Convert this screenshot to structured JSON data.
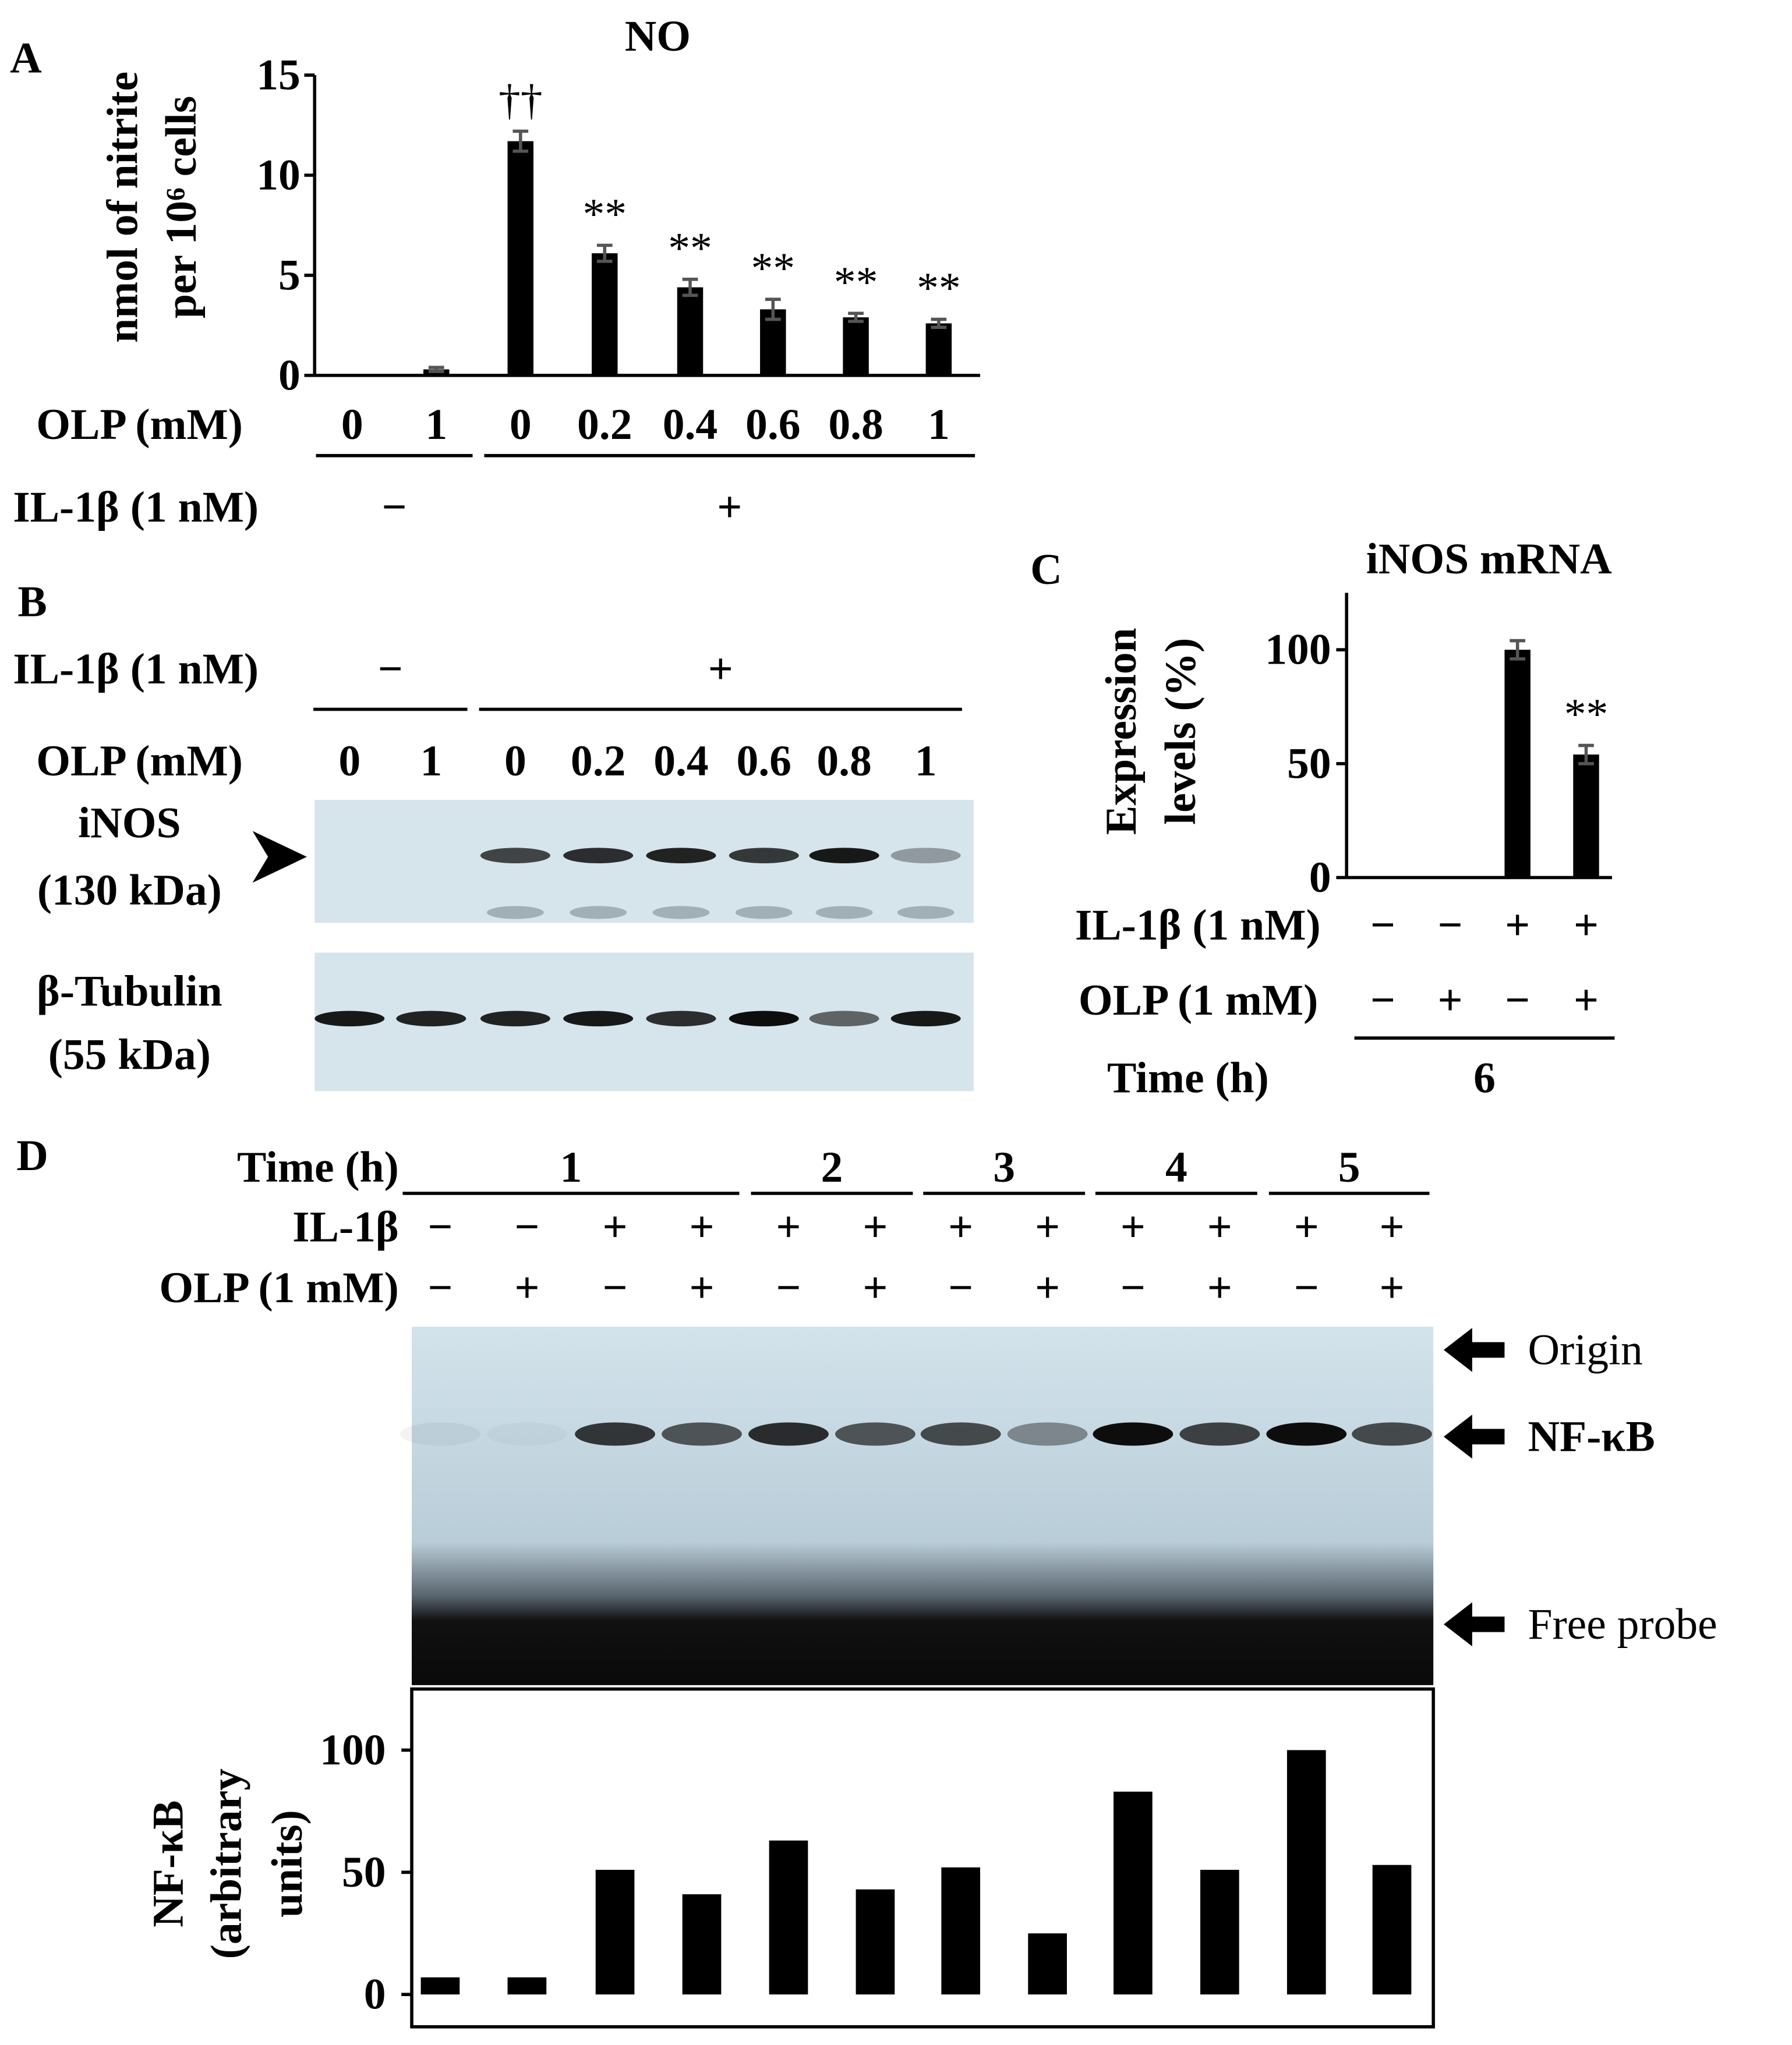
{
  "chart_data": [
    {
      "type": "bar",
      "panel": "A",
      "title": "NO",
      "y_label": [
        "nmol of nitrite",
        "per 10⁶ cells"
      ],
      "category_label": "OLP (mM)",
      "categories": [
        "0",
        "1",
        "0",
        "0.2",
        "0.4",
        "0.6",
        "0.8",
        "1"
      ],
      "values": [
        0,
        0.3,
        11.7,
        6.1,
        4.4,
        3.3,
        2.9,
        2.6
      ],
      "errors": [
        0,
        0.1,
        0.5,
        0.4,
        0.4,
        0.5,
        0.2,
        0.2
      ],
      "annotations": [
        null,
        null,
        "††",
        "**",
        "**",
        "**",
        "**",
        "**"
      ],
      "condition_rows": [
        {
          "label": "IL-1β (1 nM)",
          "groups": [
            {
              "text": "−",
              "from": 0,
              "to": 1
            },
            {
              "text": "+",
              "from": 2,
              "to": 7
            }
          ]
        }
      ],
      "ylim": [
        0,
        15
      ],
      "yticks": [
        0,
        5,
        10,
        15
      ],
      "color": "#000000"
    },
    {
      "type": "bar",
      "panel": "C",
      "title": "iNOS mRNA",
      "y_label": [
        "Expression",
        "levels (%)"
      ],
      "values": [
        0,
        0,
        100,
        54
      ],
      "errors": [
        0,
        0,
        4,
        4
      ],
      "annotations": [
        null,
        null,
        null,
        "**"
      ],
      "condition_rows": [
        {
          "label": "IL-1β (1 nM)",
          "signs": [
            "−",
            "−",
            "+",
            "+"
          ]
        },
        {
          "label": "OLP (1 mM)",
          "signs": [
            "−",
            "+",
            "−",
            "+"
          ]
        },
        {
          "label": "Time (h)",
          "groups": [
            {
              "text": "6",
              "from": 0,
              "to": 3
            }
          ]
        }
      ],
      "ylim": [
        0,
        125
      ],
      "yticks": [
        0,
        50,
        100
      ],
      "color": "#000000"
    },
    {
      "type": "bar",
      "y_label": [
        "NF-κB",
        "(arbitrary",
        "units)"
      ],
      "values": [
        7,
        7,
        51,
        41,
        63,
        43,
        52,
        25,
        83,
        51,
        100,
        53
      ],
      "ylim": [
        0,
        125
      ],
      "yticks": [
        0,
        50,
        100
      ],
      "color": "#000000"
    }
  ],
  "blots": [
    {
      "panel": "B",
      "condition_rows": [
        {
          "label": "IL-1β (1 nM)",
          "groups": [
            {
              "text": "−",
              "from": 0,
              "to": 1
            },
            {
              "text": "+",
              "from": 2,
              "to": 7
            }
          ]
        },
        {
          "label": "OLP (mM)",
          "signs": [
            "0",
            "1",
            "0",
            "0.2",
            "0.4",
            "0.6",
            "0.8",
            "1"
          ]
        }
      ],
      "bands": [
        {
          "label": [
            "iNOS",
            "(130 kDa)"
          ]
        },
        {
          "label": [
            "β-Tubulin",
            "(55 kDa)"
          ]
        }
      ]
    },
    {
      "panel": "D",
      "condition_rows": [
        {
          "label": "Time (h)",
          "groups": [
            {
              "text": "1",
              "from": 0,
              "to": 3
            },
            {
              "text": "2",
              "from": 4,
              "to": 5
            },
            {
              "text": "3",
              "from": 6,
              "to": 7
            },
            {
              "text": "4",
              "from": 8,
              "to": 9
            },
            {
              "text": "5",
              "from": 10,
              "to": 11
            }
          ]
        },
        {
          "label": "IL-1β",
          "signs": [
            "−",
            "−",
            "+",
            "+",
            "+",
            "+",
            "+",
            "+",
            "+",
            "+",
            "+",
            "+"
          ]
        },
        {
          "label": "OLP (1 mM)",
          "signs": [
            "−",
            "+",
            "−",
            "+",
            "−",
            "+",
            "−",
            "+",
            "−",
            "+",
            "−",
            "+"
          ]
        }
      ],
      "markers": [
        "Origin",
        "NF-κB",
        "Free probe"
      ]
    }
  ]
}
